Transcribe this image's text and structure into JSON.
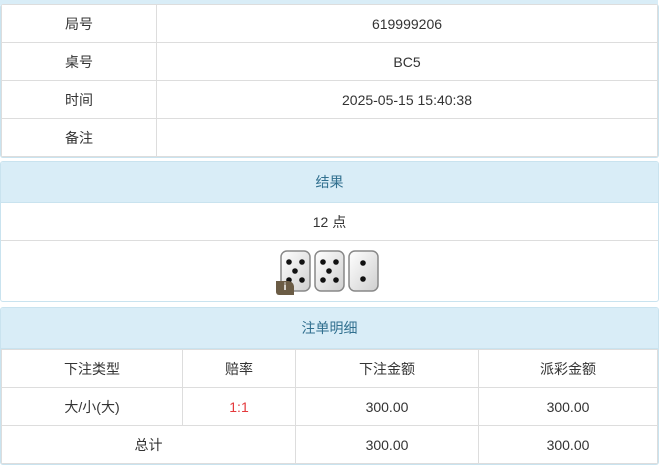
{
  "info": {
    "rows": [
      {
        "label": "局号",
        "value": "619999206"
      },
      {
        "label": "桌号",
        "value": "BC5"
      },
      {
        "label": "时间",
        "value": "2025-05-15 15:40:38"
      },
      {
        "label": "备注",
        "value": ""
      }
    ]
  },
  "result": {
    "title": "结果",
    "points": "12 点",
    "dice": [
      5,
      5,
      2
    ],
    "info_badge": "i"
  },
  "bets": {
    "title": "注单明细",
    "headers": [
      "下注类型",
      "赔率",
      "下注金额",
      "派彩金额"
    ],
    "rows": [
      {
        "type": "大/小(大)",
        "odds": "1:1",
        "amount": "300.00",
        "payout": "300.00"
      }
    ],
    "total": {
      "label": "总计",
      "amount": "300.00",
      "payout": "300.00"
    }
  }
}
